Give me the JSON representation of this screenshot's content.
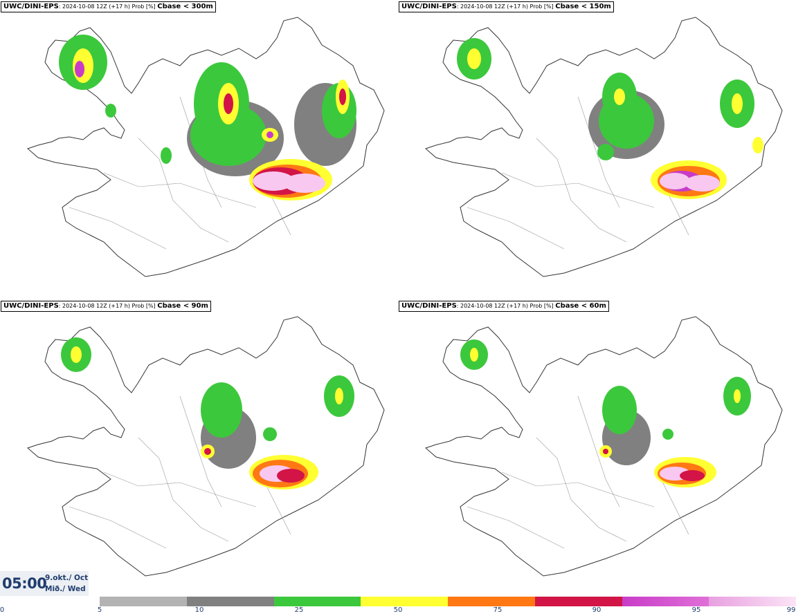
{
  "panels": [
    {
      "model": "UWC/DINI-EPS",
      "info": ": 2024-10-08 12Z (+17 h) Prob [%] ",
      "param": "Cbase < 300m"
    },
    {
      "model": "UWC/DINI-EPS",
      "info": ": 2024-10-08 12Z (+17 h) Prob [%] ",
      "param": "Cbase < 150m"
    },
    {
      "model": "UWC/DINI-EPS",
      "info": ": 2024-10-08 12Z (+17 h) Prob [%] ",
      "param": "Cbase < 90m"
    },
    {
      "model": "UWC/DINI-EPS",
      "info": ": 2024-10-08 12Z (+17 h) Prob [%] ",
      "param": "Cbase < 60m"
    }
  ],
  "valid_time": {
    "time": "05:00",
    "date_line1": "9.okt./ Oct",
    "date_line2": "Mið./ Wed"
  },
  "colorbar": {
    "ticks": [
      "0",
      "5",
      "10",
      "25",
      "50",
      "75",
      "90",
      "95",
      "99"
    ],
    "colors": [
      "#b3b3b3",
      "#808080",
      "#3cc83c",
      "#ffff32",
      "#ff7814",
      "#d21446",
      "#c83cc8",
      "#f8c8f0"
    ]
  },
  "colors": {
    "ink": "#1f3c6e"
  }
}
